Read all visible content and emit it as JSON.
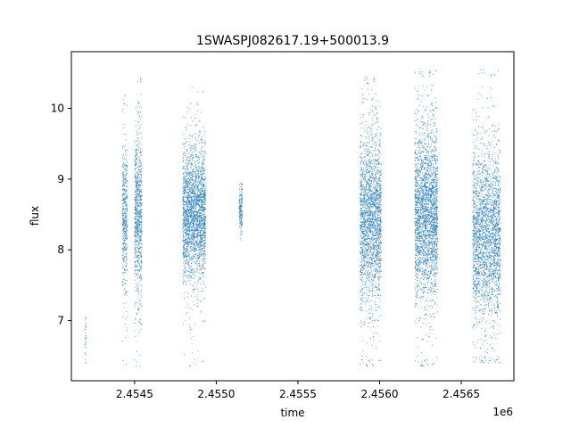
{
  "chart_data": {
    "type": "scatter",
    "title": "1SWASPJ082617.19+500013.9",
    "xlabel": "time",
    "ylabel": "flux",
    "x_offset_label": "1e6",
    "xlim": [
      2454113,
      2456822
    ],
    "ylim": [
      6.15,
      10.8
    ],
    "x_ticks": [
      2454500,
      2455000,
      2455500,
      2456000,
      2456500
    ],
    "x_tick_labels": [
      "2.4545",
      "2.4550",
      "2.4555",
      "2.4560",
      "2.4565"
    ],
    "y_ticks": [
      7,
      8,
      9,
      10
    ],
    "y_tick_labels": [
      "7",
      "8",
      "9",
      "10"
    ],
    "grid": false,
    "legend": "none",
    "marker_color": "#1f77b4",
    "series": [
      {
        "observing_seasons": [
          {
            "x_range": [
              2454195,
              2454205
            ],
            "y_center": 6.8,
            "y_spread": 0.25,
            "y_min": 6.4,
            "y_max": 7.05,
            "count": 30
          },
          {
            "x_range": [
              2454425,
              2454455
            ],
            "y_center": 8.45,
            "y_spread": 0.5,
            "y_min": 6.35,
            "y_max": 10.2,
            "count": 500
          },
          {
            "x_range": [
              2454500,
              2454545
            ],
            "y_center": 8.45,
            "y_spread": 0.6,
            "y_min": 6.35,
            "y_max": 10.45,
            "count": 900
          },
          {
            "x_range": [
              2454795,
              2454935
            ],
            "y_center": 8.5,
            "y_spread": 0.45,
            "y_min": 6.35,
            "y_max": 10.3,
            "count": 2600
          },
          {
            "x_range": [
              2455140,
              2455160
            ],
            "y_center": 8.55,
            "y_spread": 0.18,
            "y_min": 8.0,
            "y_max": 8.95,
            "count": 180
          },
          {
            "x_range": [
              2455880,
              2456010
            ],
            "y_center": 8.45,
            "y_spread": 0.6,
            "y_min": 6.35,
            "y_max": 10.45,
            "count": 2400
          },
          {
            "x_range": [
              2456215,
              2456355
            ],
            "y_center": 8.5,
            "y_spread": 0.6,
            "y_min": 6.35,
            "y_max": 10.55,
            "count": 3000
          },
          {
            "x_range": [
              2456570,
              2456740
            ],
            "y_center": 8.2,
            "y_spread": 0.6,
            "y_min": 6.4,
            "y_max": 10.55,
            "count": 2800
          }
        ]
      }
    ]
  }
}
